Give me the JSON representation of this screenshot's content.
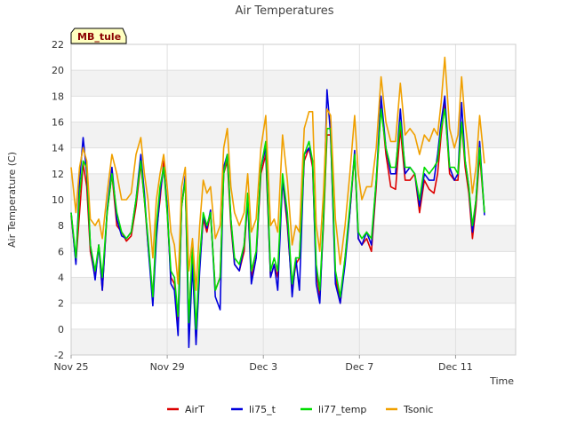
{
  "chart_data": {
    "type": "line",
    "title": "Air Temperatures",
    "xlabel": "Time",
    "ylabel": "Air Temperature (C)",
    "badge": "MB_tule",
    "xlim": [
      0,
      18.5
    ],
    "ylim": [
      -2,
      22
    ],
    "y_ticks": [
      -2,
      0,
      2,
      4,
      6,
      8,
      10,
      12,
      14,
      16,
      18,
      20,
      22
    ],
    "x_ticks": [
      {
        "pos": 0,
        "label": "Nov 25"
      },
      {
        "pos": 4,
        "label": "Nov 29"
      },
      {
        "pos": 8,
        "label": "Dec 3"
      },
      {
        "pos": 12,
        "label": "Dec 7"
      },
      {
        "pos": 16,
        "label": "Dec 11"
      }
    ],
    "grid": true,
    "legend_position": "bottom",
    "x": [
      0,
      0.2,
      0.35,
      0.5,
      0.65,
      0.8,
      1.0,
      1.15,
      1.3,
      1.5,
      1.7,
      1.9,
      2.1,
      2.3,
      2.5,
      2.7,
      2.9,
      3.05,
      3.2,
      3.4,
      3.55,
      3.7,
      3.85,
      4.0,
      4.15,
      4.3,
      4.45,
      4.6,
      4.75,
      4.9,
      5.05,
      5.2,
      5.35,
      5.5,
      5.65,
      5.8,
      6.0,
      6.2,
      6.35,
      6.5,
      6.65,
      6.8,
      7.0,
      7.2,
      7.35,
      7.5,
      7.7,
      7.9,
      8.1,
      8.3,
      8.45,
      8.6,
      8.8,
      9.0,
      9.2,
      9.35,
      9.5,
      9.7,
      9.9,
      10.05,
      10.2,
      10.35,
      10.5,
      10.65,
      10.8,
      11.0,
      11.2,
      11.4,
      11.6,
      11.8,
      11.95,
      12.1,
      12.3,
      12.5,
      12.7,
      12.9,
      13.1,
      13.3,
      13.5,
      13.7,
      13.9,
      14.1,
      14.3,
      14.5,
      14.7,
      14.9,
      15.1,
      15.25,
      15.4,
      15.55,
      15.75,
      15.95,
      16.1,
      16.25,
      16.4,
      16.55,
      16.7,
      16.85,
      17.0,
      17.2
    ],
    "series": [
      {
        "name": "AirT",
        "color": "#dd0000",
        "values": [
          8.8,
          5.2,
          9.0,
          12.8,
          11.0,
          6.0,
          4.0,
          6.5,
          3.0,
          9.0,
          12.0,
          8.0,
          7.5,
          6.8,
          7.2,
          9.5,
          12.8,
          10.0,
          6.5,
          2.5,
          7.5,
          10.0,
          13.0,
          9.0,
          4.0,
          3.5,
          0.5,
          9.5,
          11.5,
          0.5,
          6.0,
          -1.0,
          5.0,
          8.5,
          7.5,
          9.0,
          3.0,
          4.0,
          12.0,
          13.0,
          8.0,
          5.0,
          4.5,
          6.0,
          10.0,
          4.0,
          5.5,
          12.0,
          13.5,
          4.0,
          5.0,
          4.0,
          11.5,
          8.0,
          3.0,
          5.0,
          5.5,
          13.0,
          14.0,
          12.5,
          4.5,
          2.5,
          8.0,
          15.0,
          15.0,
          4.0,
          2.0,
          5.5,
          9.0,
          13.5,
          7.0,
          6.5,
          7.0,
          6.0,
          11.0,
          17.5,
          13.5,
          11.0,
          10.8,
          15.5,
          11.5,
          11.5,
          12.0,
          9.0,
          11.5,
          10.8,
          10.5,
          12.0,
          15.0,
          17.5,
          12.0,
          11.5,
          11.5,
          16.0,
          12.5,
          10.5,
          7.0,
          9.5,
          13.5,
          9.0
        ]
      },
      {
        "name": "li75_t",
        "color": "#0000dd",
        "values": [
          9.0,
          5.0,
          11.5,
          14.8,
          12.0,
          6.5,
          3.8,
          6.5,
          3.0,
          9.2,
          12.5,
          8.5,
          7.2,
          7.0,
          7.5,
          10.0,
          13.5,
          10.5,
          6.5,
          1.8,
          7.0,
          10.5,
          12.5,
          9.5,
          3.5,
          3.0,
          -0.5,
          9.5,
          11.8,
          -1.4,
          5.0,
          -1.2,
          4.5,
          8.8,
          7.8,
          9.2,
          2.5,
          1.5,
          12.5,
          13.5,
          8.5,
          5.0,
          4.5,
          6.5,
          10.0,
          3.5,
          5.5,
          12.5,
          14.0,
          4.0,
          5.0,
          3.0,
          11.5,
          8.5,
          2.5,
          5.5,
          3.0,
          13.5,
          14.0,
          13.0,
          3.5,
          2.0,
          8.5,
          18.5,
          15.0,
          3.5,
          2.0,
          5.0,
          9.0,
          13.8,
          7.0,
          6.5,
          7.5,
          6.5,
          11.5,
          18.0,
          14.0,
          12.0,
          12.0,
          17.0,
          12.0,
          12.5,
          12.0,
          9.5,
          12.0,
          11.5,
          11.5,
          13.5,
          16.0,
          18.0,
          12.5,
          11.5,
          12.0,
          17.5,
          13.0,
          11.0,
          7.5,
          10.0,
          14.5,
          8.8
        ]
      },
      {
        "name": "li77_temp",
        "color": "#00dd00",
        "values": [
          9.0,
          5.5,
          10.5,
          13.0,
          12.5,
          6.5,
          4.5,
          6.5,
          4.0,
          9.0,
          12.0,
          9.0,
          7.5,
          7.0,
          7.5,
          10.0,
          13.0,
          10.0,
          7.0,
          2.5,
          8.0,
          11.0,
          12.5,
          9.0,
          4.5,
          4.0,
          1.0,
          9.5,
          11.5,
          0.5,
          6.5,
          0.0,
          5.5,
          9.0,
          8.0,
          9.0,
          3.0,
          4.0,
          12.0,
          13.5,
          8.5,
          5.5,
          5.0,
          6.5,
          10.5,
          4.5,
          6.0,
          12.5,
          14.5,
          4.5,
          5.5,
          4.5,
          12.0,
          9.0,
          3.5,
          5.5,
          5.5,
          13.5,
          14.5,
          13.0,
          5.0,
          3.0,
          8.5,
          15.5,
          15.5,
          4.5,
          2.5,
          5.5,
          9.5,
          13.5,
          7.5,
          7.0,
          7.5,
          7.0,
          11.5,
          17.0,
          14.0,
          12.5,
          12.5,
          16.0,
          12.5,
          12.5,
          12.0,
          10.0,
          12.5,
          12.0,
          12.5,
          13.0,
          15.5,
          17.0,
          12.5,
          12.5,
          12.0,
          16.0,
          13.0,
          11.0,
          8.0,
          10.0,
          14.0,
          9.0
        ]
      },
      {
        "name": "Tsonic",
        "color": "#f0a000",
        "values": [
          12.5,
          9.0,
          12.5,
          14.0,
          13.0,
          8.5,
          8.0,
          8.5,
          7.0,
          10.5,
          13.5,
          12.0,
          10.0,
          10.0,
          10.5,
          13.5,
          14.8,
          12.0,
          10.0,
          5.5,
          10.0,
          12.0,
          13.5,
          11.0,
          7.5,
          6.5,
          3.5,
          11.0,
          12.5,
          4.5,
          7.0,
          3.0,
          8.0,
          11.5,
          10.5,
          11.0,
          7.0,
          8.0,
          14.0,
          15.5,
          11.0,
          9.0,
          8.0,
          9.0,
          12.0,
          7.5,
          8.5,
          14.0,
          16.5,
          8.0,
          8.5,
          7.5,
          15.0,
          11.5,
          6.5,
          8.0,
          7.5,
          15.5,
          16.8,
          16.8,
          8.0,
          6.0,
          10.5,
          17.0,
          16.5,
          8.5,
          5.0,
          8.0,
          12.0,
          16.5,
          12.0,
          10.0,
          11.0,
          11.0,
          14.0,
          19.5,
          16.0,
          14.5,
          14.5,
          19.0,
          15.0,
          15.5,
          15.0,
          13.5,
          15.0,
          14.5,
          15.5,
          15.0,
          17.5,
          21.0,
          15.5,
          14.0,
          15.0,
          19.5,
          16.0,
          13.5,
          10.5,
          12.5,
          16.5,
          12.8
        ]
      }
    ]
  }
}
